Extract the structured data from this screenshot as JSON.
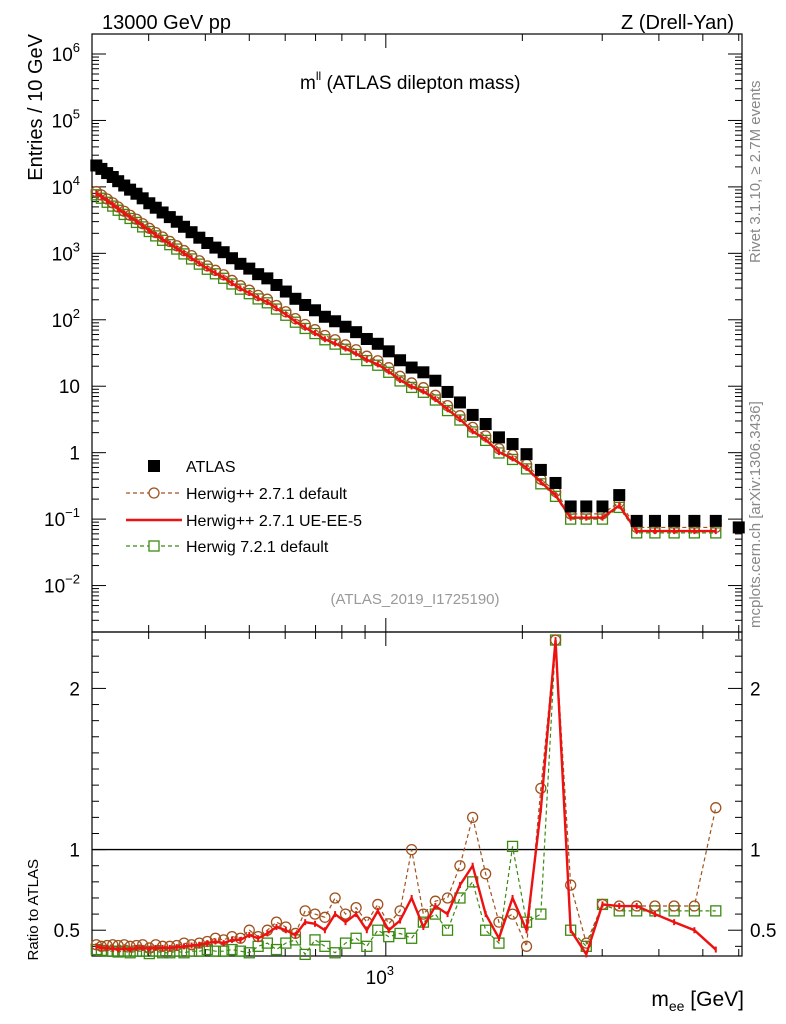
{
  "header": {
    "left": "13000 GeV pp",
    "right": "Z (Drell-Yan)",
    "plot_title": "m",
    "plot_title_sup": "ll",
    "plot_title_rest": " (ATLAS dilepton mass)",
    "analysis_id": "(ATLAS_2019_I1725190)",
    "side_top": "Rivet 3.1.10, ≥ 2.7M events",
    "side_bottom": "mcplots.cern.ch [arXiv:1306.3436]"
  },
  "colors": {
    "atlas": "#000000",
    "herwigpp_default": "#a0521e",
    "herwigpp_ueee5": "#ee1111",
    "herwig72_default": "#3b8a12"
  },
  "chart_data": [
    {
      "type": "scatter",
      "title": "",
      "xlabel": "m_ee [GeV]",
      "xlabel_main": "m",
      "xlabel_sub": "ee",
      "xlabel_unit": " [GeV]",
      "ylabel": "Entries / 10 GeV",
      "xscale": "log",
      "yscale": "log",
      "xlim": [
        225,
        6100
      ],
      "ylim": [
        0.002,
        2000000
      ],
      "x_ticks": [
        {
          "value": 1000,
          "label": "10",
          "exp": "3"
        }
      ],
      "y_ticks": [
        {
          "value": 0.01,
          "label": "10",
          "exp": "−2"
        },
        {
          "value": 0.1,
          "label": "10",
          "exp": "−1"
        },
        {
          "value": 1,
          "label": "1",
          "exp": ""
        },
        {
          "value": 10,
          "label": "10",
          "exp": ""
        },
        {
          "value": 100,
          "label": "10",
          "exp": "2"
        },
        {
          "value": 1000,
          "label": "10",
          "exp": "3"
        },
        {
          "value": 10000,
          "label": "10",
          "exp": "4"
        },
        {
          "value": 100000,
          "label": "10",
          "exp": "5"
        },
        {
          "value": 1000000,
          "label": "10",
          "exp": "6"
        }
      ],
      "legend_position": "lower-left",
      "series": [
        {
          "name": "ATLAS",
          "marker": "filled-square",
          "color": "#000000",
          "x": [
            230,
            236,
            243,
            250,
            257,
            265,
            273,
            282,
            291,
            301,
            311,
            322,
            334,
            346,
            359,
            373,
            388,
            404,
            421,
            439,
            458,
            478,
            500,
            523,
            548,
            574,
            602,
            632,
            664,
            698,
            734,
            773,
            815,
            860,
            908,
            960,
            1015,
            1075,
            1140,
            1210,
            1286,
            1368,
            1457,
            1554,
            1660,
            1776,
            1903,
            2043,
            2197,
            2367,
            2556,
            2767,
            3004,
            3271,
            3574,
            3921,
            4322,
            4790,
            5340,
            6000
          ],
          "y": [
            21000,
            18650,
            16130,
            14090,
            12180,
            10490,
            9090,
            7890,
            6730,
            5670,
            4860,
            4120,
            3510,
            2990,
            2510,
            2080,
            1720,
            1430,
            1220,
            1040,
            844,
            695,
            589,
            486,
            420,
            334,
            266,
            207,
            167,
            139,
            111,
            95,
            78.5,
            65.1,
            51.4,
            43.5,
            33.5,
            24.6,
            19.1,
            16.2,
            12.1,
            8.2,
            5.7,
            3.7,
            2.7,
            1.7,
            1.35,
            0.95,
            0.55,
            0.35,
            0.155,
            0.155,
            0.155,
            0.23,
            0.094,
            0.094,
            0.094,
            0.094,
            0.094,
            0.075
          ]
        },
        {
          "name": "Herwig++ 2.7.1 default",
          "marker": "open-circle",
          "line": "dashed",
          "color": "#a0521e",
          "x": [
            230,
            236,
            243,
            250,
            257,
            265,
            273,
            282,
            291,
            301,
            311,
            322,
            334,
            346,
            359,
            373,
            388,
            404,
            421,
            439,
            458,
            478,
            500,
            523,
            548,
            574,
            602,
            632,
            664,
            698,
            734,
            773,
            815,
            860,
            908,
            960,
            1015,
            1075,
            1140,
            1210,
            1286,
            1368,
            1457,
            1554,
            1660,
            1776,
            1903,
            2043,
            2197,
            2367,
            2556,
            2767,
            3004,
            3271,
            3574,
            3921,
            4322,
            4790,
            5340
          ],
          "y": [
            8500,
            7550,
            6570,
            5750,
            4980,
            4300,
            3740,
            3260,
            2790,
            2380,
            2050,
            1760,
            1510,
            1300,
            1100,
            924,
            773,
            648,
            555,
            476,
            391,
            326,
            279,
            233,
            204,
            164,
            132,
            104,
            85,
            71,
            58,
            50,
            42,
            35.4,
            28.3,
            24.2,
            19,
            14.1,
            11.2,
            9.5,
            7.3,
            5.1,
            3.6,
            2.4,
            1.79,
            1.15,
            0.93,
            0.67,
            0.4,
            0.26,
            0.12,
            0.12,
            0.12,
            0.18,
            0.075,
            0.075,
            0.075,
            0.075,
            0.075
          ]
        },
        {
          "name": "Herwig++ 2.7.1 UE-EE-5",
          "marker": "line-with-error-bars",
          "line": "solid",
          "color": "#ee1111",
          "x": [
            230,
            236,
            243,
            250,
            257,
            265,
            273,
            282,
            291,
            301,
            311,
            322,
            334,
            346,
            359,
            373,
            388,
            404,
            421,
            439,
            458,
            478,
            500,
            523,
            548,
            574,
            602,
            632,
            664,
            698,
            734,
            773,
            815,
            860,
            908,
            960,
            1015,
            1075,
            1140,
            1210,
            1286,
            1368,
            1457,
            1554,
            1660,
            1776,
            1903,
            2043,
            2197,
            2367,
            2556,
            2767,
            3004,
            3271,
            3574,
            3921,
            4322,
            4790,
            5340
          ],
          "y": [
            8000,
            7100,
            6170,
            5390,
            4650,
            4010,
            3480,
            3030,
            2590,
            2200,
            1890,
            1620,
            1390,
            1190,
            1005,
            844,
            705,
            590,
            505,
            432,
            355,
            296,
            253,
            211,
            185,
            149,
            120,
            94,
            76,
            63,
            51,
            44,
            37,
            31,
            25,
            21.3,
            16.7,
            12.4,
            9.9,
            8.4,
            6.4,
            4.5,
            3.2,
            2.1,
            1.58,
            1.02,
            0.82,
            0.59,
            0.36,
            0.23,
            0.105,
            0.105,
            0.105,
            0.16,
            0.066,
            0.066,
            0.066,
            0.066,
            0.066
          ]
        },
        {
          "name": "Herwig 7.2.1 default",
          "marker": "open-square",
          "line": "dashed",
          "color": "#3b8a12",
          "x": [
            230,
            236,
            243,
            250,
            257,
            265,
            273,
            282,
            291,
            301,
            311,
            322,
            334,
            346,
            359,
            373,
            388,
            404,
            421,
            439,
            458,
            478,
            500,
            523,
            548,
            574,
            602,
            632,
            664,
            698,
            734,
            773,
            815,
            860,
            908,
            960,
            1015,
            1075,
            1140,
            1210,
            1286,
            1368,
            1457,
            1554,
            1660,
            1776,
            1903,
            2043,
            2197,
            2367,
            2556,
            2767,
            3004,
            3271,
            3574,
            3921,
            4322,
            4790,
            5340
          ],
          "y": [
            7600,
            6750,
            5870,
            5140,
            4450,
            3850,
            3350,
            2920,
            2500,
            2130,
            1830,
            1570,
            1350,
            1160,
            980,
            823,
            688,
            576,
            492,
            421,
            346,
            289,
            247,
            206,
            180,
            145,
            117,
            92,
            74,
            62,
            50,
            43,
            36,
            30,
            24.3,
            20.7,
            16.2,
            12,
            9.6,
            8.1,
            6.2,
            4.3,
            3.1,
            2.05,
            1.53,
            0.99,
            0.79,
            0.57,
            0.34,
            0.22,
            0.1,
            0.1,
            0.1,
            0.15,
            0.062,
            0.062,
            0.062,
            0.062,
            0.062
          ]
        }
      ]
    },
    {
      "type": "line",
      "title": "",
      "xlabel": "m_ee [GeV]",
      "ylabel": "Ratio to ATLAS",
      "xscale": "log",
      "ylim": [
        0.34,
        2.35
      ],
      "reference_line": 1,
      "y_ticks": [
        {
          "value": 0.5,
          "label": "0.5"
        },
        {
          "value": 1,
          "label": "1"
        },
        {
          "value": 2,
          "label": "2"
        }
      ],
      "series": [
        {
          "name": "Herwig++ 2.7.1 default",
          "color": "#a0521e",
          "x": [
            230,
            236,
            243,
            250,
            257,
            265,
            273,
            282,
            291,
            301,
            311,
            322,
            334,
            346,
            359,
            373,
            388,
            404,
            421,
            439,
            458,
            478,
            500,
            523,
            548,
            574,
            602,
            632,
            664,
            698,
            734,
            773,
            815,
            860,
            908,
            960,
            1015,
            1075,
            1140,
            1210,
            1286,
            1368,
            1457,
            1554,
            1660,
            1776,
            1903,
            2043,
            2197,
            2367,
            2556,
            2767,
            3004,
            3271,
            3574,
            3921,
            4322,
            4790,
            5340
          ],
          "y": [
            0.41,
            0.4,
            0.405,
            0.41,
            0.405,
            0.41,
            0.4,
            0.405,
            0.41,
            0.39,
            0.41,
            0.4,
            0.4,
            0.405,
            0.42,
            0.41,
            0.42,
            0.43,
            0.45,
            0.44,
            0.46,
            0.45,
            0.5,
            0.46,
            0.5,
            0.55,
            0.52,
            0.48,
            0.62,
            0.6,
            0.58,
            0.7,
            0.6,
            0.64,
            0.55,
            0.66,
            0.54,
            0.62,
            1.0,
            0.6,
            0.68,
            0.7,
            0.9,
            1.2,
            0.85,
            0.55,
            0.6,
            0.4,
            1.38,
            2.3,
            0.78,
            0.42,
            0.66,
            0.65,
            0.65,
            0.65,
            0.65,
            0.65,
            1.26
          ]
        },
        {
          "name": "Herwig++ 2.7.1 UE-EE-5",
          "color": "#ee1111",
          "x": [
            230,
            236,
            243,
            250,
            257,
            265,
            273,
            282,
            291,
            301,
            311,
            322,
            334,
            346,
            359,
            373,
            388,
            404,
            421,
            439,
            458,
            478,
            500,
            523,
            548,
            574,
            602,
            632,
            664,
            698,
            734,
            773,
            815,
            860,
            908,
            960,
            1015,
            1075,
            1140,
            1210,
            1286,
            1368,
            1457,
            1554,
            1660,
            1776,
            1903,
            2043,
            2197,
            2367,
            2556,
            2767,
            3004,
            3271,
            3574,
            3921,
            4322,
            4790,
            5340
          ],
          "y": [
            0.4,
            0.39,
            0.39,
            0.385,
            0.38,
            0.385,
            0.38,
            0.39,
            0.39,
            0.385,
            0.39,
            0.39,
            0.39,
            0.395,
            0.4,
            0.405,
            0.41,
            0.42,
            0.43,
            0.42,
            0.44,
            0.44,
            0.47,
            0.45,
            0.48,
            0.52,
            0.5,
            0.47,
            0.55,
            0.54,
            0.5,
            0.6,
            0.55,
            0.6,
            0.5,
            0.62,
            0.5,
            0.56,
            0.7,
            0.52,
            0.65,
            0.6,
            0.78,
            0.9,
            0.6,
            0.45,
            0.7,
            0.5,
            1.25,
            2.3,
            0.5,
            0.35,
            0.66,
            0.65,
            0.65,
            0.6,
            0.55,
            0.5,
            0.38
          ]
        },
        {
          "name": "Herwig 7.2.1 default",
          "color": "#3b8a12",
          "x": [
            230,
            236,
            243,
            250,
            257,
            265,
            273,
            282,
            291,
            301,
            311,
            322,
            334,
            346,
            359,
            373,
            388,
            404,
            421,
            439,
            458,
            478,
            500,
            523,
            548,
            574,
            602,
            632,
            664,
            698,
            734,
            773,
            815,
            860,
            908,
            960,
            1015,
            1075,
            1140,
            1210,
            1286,
            1368,
            1457,
            1554,
            1660,
            1776,
            1903,
            2043,
            2197,
            2367,
            2556,
            2767,
            3004,
            3271,
            3574,
            3921,
            4322,
            4790,
            5340
          ],
          "y": [
            0.38,
            0.375,
            0.37,
            0.37,
            0.365,
            0.37,
            0.36,
            0.37,
            0.37,
            0.355,
            0.37,
            0.36,
            0.36,
            0.37,
            0.36,
            0.37,
            0.37,
            0.38,
            0.37,
            0.37,
            0.38,
            0.37,
            0.36,
            0.4,
            0.42,
            0.38,
            0.42,
            0.44,
            0.35,
            0.44,
            0.4,
            0.36,
            0.42,
            0.45,
            0.4,
            0.5,
            0.46,
            0.48,
            0.45,
            0.55,
            0.6,
            0.5,
            0.7,
            0.8,
            0.5,
            0.42,
            1.02,
            0.55,
            0.6,
            2.3,
            0.5,
            0.4,
            0.66,
            0.62,
            0.62,
            0.62,
            0.62,
            0.62,
            0.62
          ]
        }
      ]
    }
  ]
}
